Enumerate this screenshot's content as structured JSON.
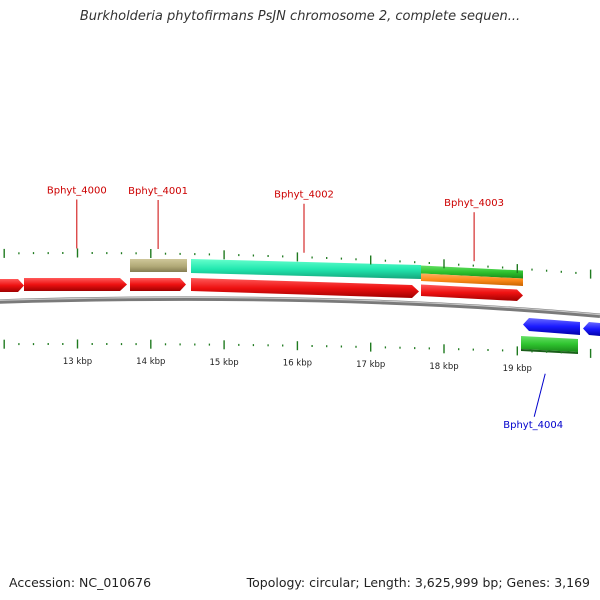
{
  "title": "Burkholderia phytofirmans PsJN chromosome 2, complete sequen...",
  "footer": {
    "accession": "Accession: NC_010676",
    "stats": "Topology: circular; Length: 3,625,999 bp; Genes: 3,169"
  },
  "colors": {
    "background": "#ffffff",
    "backbone": "#808080",
    "tick": "#1f7a1f",
    "label_forward": "#cc0000",
    "label_reverse": "#0000cc",
    "cds": "#ff1a1a",
    "rrna_tan": "#b5ad7a",
    "aqua": "#22e8b0",
    "green": "#33cc33",
    "orange": "#ff8c1a",
    "blue": "#1a1aff"
  },
  "scale": {
    "unit": "kbp",
    "tick_labels": [
      {
        "kbp": 13,
        "text": "13 kbp"
      },
      {
        "kbp": 14,
        "text": "14 kbp"
      },
      {
        "kbp": 15,
        "text": "15 kbp"
      },
      {
        "kbp": 16,
        "text": "16 kbp"
      },
      {
        "kbp": 17,
        "text": "17 kbp"
      },
      {
        "kbp": 18,
        "text": "18 kbp"
      },
      {
        "kbp": 19,
        "text": "19 kbp"
      }
    ]
  },
  "gene_labels": [
    {
      "name": "Bphyt_4000",
      "strand": "forward",
      "kbp": 12.99
    },
    {
      "name": "Bphyt_4001",
      "strand": "forward",
      "kbp": 14.1
    },
    {
      "name": "Bphyt_4002",
      "strand": "forward",
      "kbp": 16.09
    },
    {
      "name": "Bphyt_4003",
      "strand": "forward",
      "kbp": 18.41
    },
    {
      "name": "Bphyt_4004",
      "strand": "reverse",
      "kbp": 19.38
    }
  ]
}
